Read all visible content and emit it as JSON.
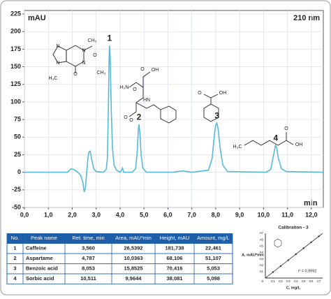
{
  "chart_data": {
    "type": "line",
    "y_label": "mAU",
    "wavelength": "210 nm",
    "x_label": "min",
    "xlim": [
      0,
      12.5
    ],
    "ylim": [
      -50,
      230
    ],
    "xticks": [
      {
        "value": 0,
        "label": "0,0"
      },
      {
        "value": 1,
        "label": "1,0"
      },
      {
        "value": 2,
        "label": "2,0"
      },
      {
        "value": 3,
        "label": "3,0"
      },
      {
        "value": 4,
        "label": "4,0"
      },
      {
        "value": 5,
        "label": "5,0"
      },
      {
        "value": 6,
        "label": "6,0"
      },
      {
        "value": 7,
        "label": "7,0"
      },
      {
        "value": 8,
        "label": "8,0"
      },
      {
        "value": 9,
        "label": "9,0"
      },
      {
        "value": 10,
        "label": "10,0"
      },
      {
        "value": 11,
        "label": "11,0"
      },
      {
        "value": 12,
        "label": "12,0"
      }
    ],
    "yticks": [
      -50,
      -25,
      0,
      25,
      50,
      75,
      100,
      125,
      150,
      175,
      200,
      225
    ],
    "grid": true,
    "series": [
      {
        "name": "210 nm",
        "color": "#56b9da",
        "x": [
          0,
          1.8,
          1.95,
          2.05,
          2.2,
          2.35,
          2.45,
          2.5,
          2.55,
          2.6,
          2.65,
          2.7,
          2.75,
          2.8,
          2.9,
          3.0,
          3.3,
          3.42,
          3.47,
          3.51,
          3.54,
          3.56,
          3.59,
          3.63,
          3.68,
          3.75,
          3.85,
          4.0,
          4.06,
          4.1,
          4.15,
          4.5,
          4.65,
          4.72,
          4.76,
          4.79,
          4.83,
          4.88,
          4.95,
          5.1,
          6.2,
          6.6,
          7.0,
          7.7,
          7.85,
          7.95,
          8.0,
          8.05,
          8.1,
          8.18,
          8.3,
          8.5,
          10.1,
          10.3,
          10.42,
          10.5,
          10.55,
          10.62,
          10.75,
          10.95,
          12.5
        ],
        "values": [
          0,
          0,
          5,
          4,
          1,
          -4,
          -15,
          -28,
          -22,
          -2,
          18,
          29,
          30,
          20,
          5,
          1,
          0,
          4,
          20,
          90,
          160,
          180,
          160,
          90,
          35,
          10,
          3,
          0,
          3,
          6,
          0,
          0,
          5,
          30,
          60,
          68,
          55,
          25,
          6,
          0,
          0,
          2,
          0,
          3,
          20,
          55,
          67,
          70,
          62,
          35,
          10,
          1,
          0,
          4,
          25,
          38,
          35,
          20,
          5,
          1,
          0
        ]
      }
    ],
    "peak_labels": [
      {
        "x": 3.56,
        "text": "1"
      },
      {
        "x": 4.787,
        "text": "2"
      },
      {
        "x": 8.053,
        "text": "3"
      },
      {
        "x": 10.511,
        "text": "4"
      }
    ],
    "structure_labels": [
      "CH₃",
      "O",
      "N",
      "N",
      "N",
      "N",
      "O",
      "CH₃",
      "H₃C",
      "OH",
      "O",
      "H₂N",
      "HN",
      "O",
      "O",
      "O",
      "OH",
      "O",
      "H₃C",
      "OH",
      "O"
    ]
  },
  "table": {
    "header": [
      "No.",
      "Peak name",
      "Ret. time, min",
      "Area, mAU*min",
      "Height, mAU",
      "Amount, mg/L"
    ],
    "rows": [
      [
        "1",
        "Caffeine",
        "3,560",
        "26,5392",
        "181,738",
        "22,461"
      ],
      [
        "2",
        "Aspartame",
        "4,787",
        "10,0363",
        "68,106",
        "51,107"
      ],
      [
        "3",
        "Benzoic acid",
        "8,053",
        "15,8525",
        "70,416",
        "5,053"
      ],
      [
        "4",
        "Sorbic acid",
        "10,511",
        "9,9644",
        "38,081",
        "5,098"
      ]
    ]
  },
  "calibration": {
    "title": "Calibration - 3",
    "y_label": "A, mAU*min",
    "x_label": "C, mg/L",
    "r2": "r² = 0,9992",
    "origin": "0",
    "yticks": [
      "A1",
      "A2",
      "A3",
      "A4",
      "A5",
      "A6",
      "A7"
    ],
    "xticks": [
      "C1",
      "C2",
      "C3",
      "C4",
      "C5",
      "C6",
      "C7"
    ]
  }
}
